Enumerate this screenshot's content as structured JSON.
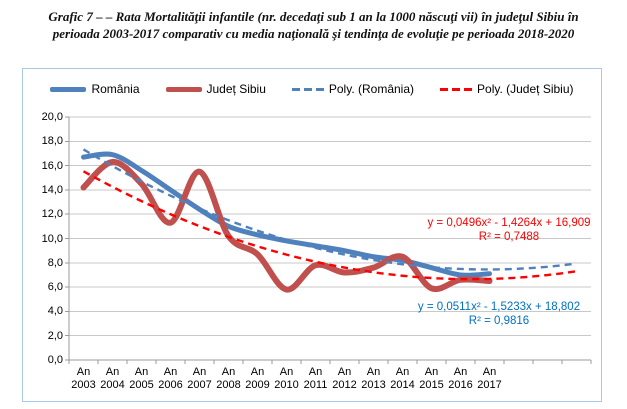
{
  "title": {
    "line1": "Grafic 7 – – Rata Mortalităţii infantile (nr. decedaţi sub 1 an la 1000 născuţi vii) în judeţul Sibiu în",
    "line2": "perioada 2003-2017 comparativ cu media naţională şi tendinţa de evoluţie pe perioada 2018-2020"
  },
  "chart_data": {
    "type": "line",
    "x_label_prefix": "An",
    "categories": [
      "2003",
      "2004",
      "2005",
      "2006",
      "2007",
      "2008",
      "2009",
      "2010",
      "2011",
      "2012",
      "2013",
      "2014",
      "2015",
      "2016",
      "2017"
    ],
    "series": [
      {
        "name": "România",
        "style": "solid",
        "color": "#4F81BD",
        "width": 5,
        "values": [
          16.7,
          16.9,
          15.6,
          14.0,
          12.4,
          11.0,
          10.3,
          9.8,
          9.4,
          9.0,
          8.5,
          8.2,
          7.6,
          7.0,
          7.1
        ]
      },
      {
        "name": "Județ Sibiu",
        "style": "solid",
        "color": "#C0504D",
        "width": 6,
        "values": [
          14.2,
          16.3,
          14.5,
          11.3,
          15.5,
          10.2,
          8.7,
          5.8,
          7.8,
          7.2,
          7.6,
          8.5,
          5.9,
          6.6,
          6.5
        ]
      },
      {
        "name": "Poly. (România)",
        "style": "dashed",
        "color": "#4F81BD",
        "width": 2.4,
        "trend": {
          "a": 0.0511,
          "b": -1.5233,
          "c": 18.802,
          "x_start": 1,
          "x_end": 18
        },
        "equation": "y = 0,0511x² - 1,5233x + 18,802",
        "r_squared": "R² = 0,9816",
        "equation_color": "#0070C0"
      },
      {
        "name": "Poly. (Județ Sibiu)",
        "style": "dashed",
        "color": "#FF0000",
        "width": 2.4,
        "trend": {
          "a": 0.0496,
          "b": -1.4264,
          "c": 16.909,
          "x_start": 1,
          "x_end": 18
        },
        "equation": "y = 0,0496x² - 1,4264x + 16,909",
        "r_squared": "R² = 0,7488",
        "equation_color": "#FF0000"
      }
    ],
    "ylim": [
      0,
      20
    ],
    "ytick_step": 2,
    "y_tick_labels": [
      "0,0",
      "2,0",
      "4,0",
      "6,0",
      "8,0",
      "10,0",
      "12,0",
      "14,0",
      "16,0",
      "18,0",
      "20,0"
    ],
    "grid": true,
    "legend_position": "top",
    "trend_periods_forward": 3,
    "colors": {
      "gridline": "#c9c9c9",
      "axis": "#9b9b9b",
      "frame_border": "#abc8e8"
    }
  }
}
